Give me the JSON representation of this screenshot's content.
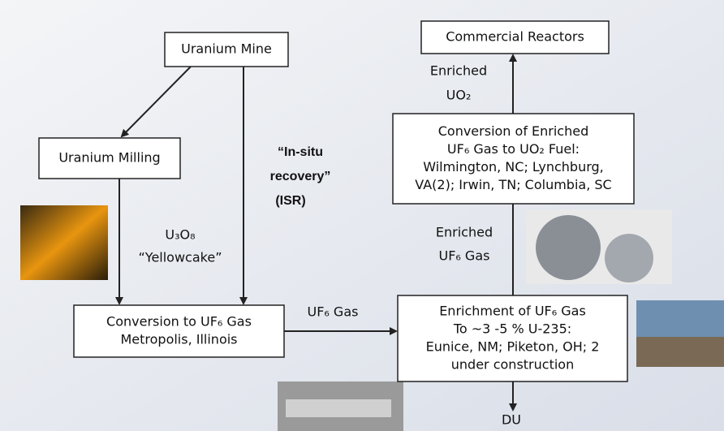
{
  "nodes": [
    {
      "lines": [
        "Uranium Mine"
      ]
    },
    {
      "lines": [
        "Commercial Reactors"
      ]
    },
    {
      "lines": [
        "Uranium Milling"
      ]
    },
    {
      "lines": [
        "Conversion of Enriched",
        "UF₆ Gas to UO₂ Fuel:",
        "Wilmington, NC; Lynchburg,",
        "VA(2); Irwin, TN; Columbia, SC"
      ]
    },
    {
      "lines": [
        "Conversion to UF₆ Gas",
        "Metropolis, Illinois"
      ]
    },
    {
      "lines": [
        "Enrichment of UF₆ Gas",
        "To ~3 -5 % U-235:",
        "Eunice, NM; Piketon, OH; 2",
        "under construction"
      ]
    }
  ],
  "labels": [
    {
      "lines": [
        "“In-situ",
        "recovery”",
        "(ISR)"
      ]
    },
    {
      "lines": [
        "U₃O₈",
        "“Yellowcake”"
      ]
    },
    {
      "lines": [
        "UF₆ Gas"
      ]
    },
    {
      "lines": [
        "Enriched",
        "UO₂"
      ]
    },
    {
      "lines": [
        "Enriched",
        "UF₆ Gas"
      ]
    },
    {
      "lines": [
        "DU"
      ]
    }
  ]
}
